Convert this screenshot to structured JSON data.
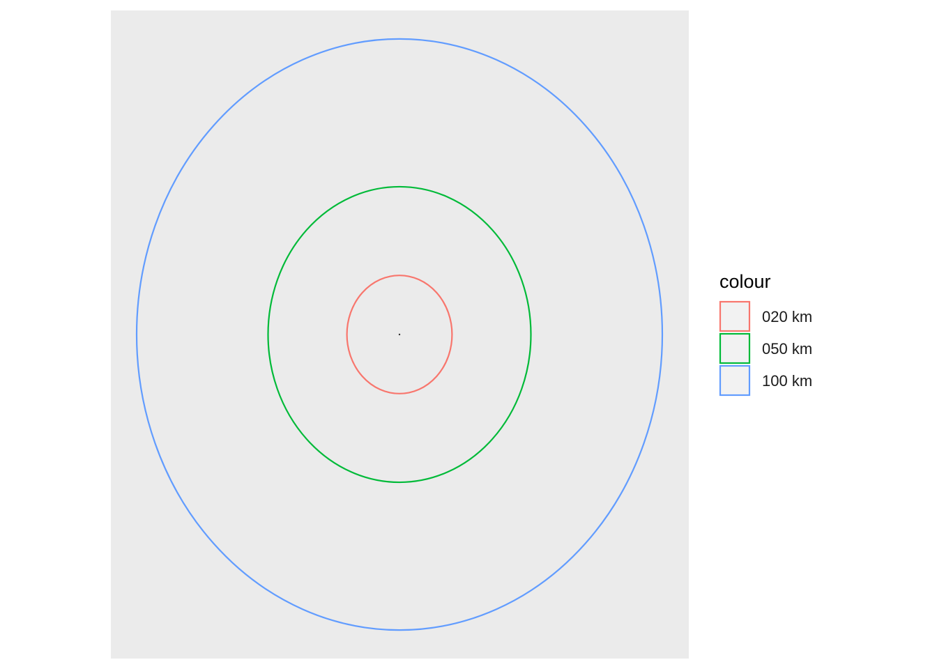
{
  "chart_data": {
    "type": "buffer-rings",
    "title": "",
    "xlabel": "",
    "ylabel": "",
    "grid": false,
    "panel_background": "#EBEBEB",
    "legend": {
      "title": "colour",
      "position": "right"
    },
    "center": {
      "x": 0,
      "y": 0
    },
    "radius_ratio": 1.125,
    "extent_km": 110,
    "series": [
      {
        "name": "020 km",
        "radius_km": 20,
        "color": "#F8766D"
      },
      {
        "name": "050 km",
        "radius_km": 50,
        "color": "#00BA38"
      },
      {
        "name": "100 km",
        "radius_km": 100,
        "color": "#619CFF"
      }
    ]
  }
}
